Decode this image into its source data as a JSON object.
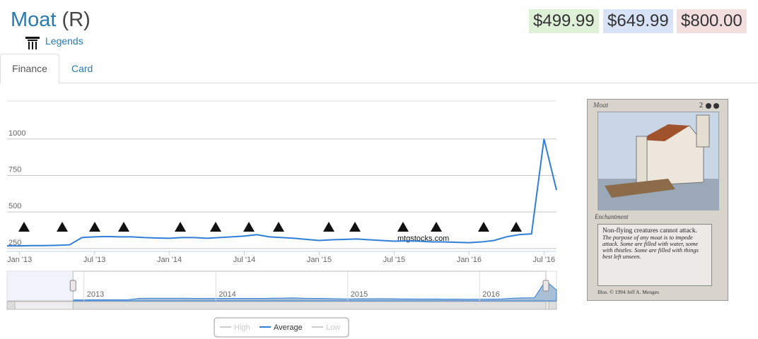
{
  "header": {
    "title": "Moat",
    "rarity": "(R)",
    "set": "Legends"
  },
  "prices": [
    "$499.99",
    "$649.99",
    "$800.00"
  ],
  "tabs": [
    "Finance",
    "Card"
  ],
  "watermark": "mtgstocks.com",
  "chart_data": {
    "type": "line",
    "x": [
      "2012-12",
      "2013-01",
      "2013-02",
      "2013-03",
      "2013-04",
      "2013-05",
      "2013-06",
      "2013-07",
      "2013-08",
      "2013-09",
      "2013-10",
      "2013-11",
      "2013-12",
      "2014-01",
      "2014-02",
      "2014-03",
      "2014-04",
      "2014-05",
      "2014-06",
      "2014-07",
      "2014-08",
      "2014-09",
      "2014-10",
      "2014-11",
      "2014-12",
      "2015-01",
      "2015-02",
      "2015-03",
      "2015-04",
      "2015-05",
      "2015-06",
      "2015-07",
      "2015-08",
      "2015-09",
      "2015-10",
      "2015-11",
      "2015-12",
      "2016-01",
      "2016-02",
      "2016-03",
      "2016-04",
      "2016-05",
      "2016-06",
      "2016-07",
      "2016-08"
    ],
    "series": [
      {
        "name": "High",
        "color": "#cccccc",
        "hidden": true
      },
      {
        "name": "Average",
        "color": "#2f7ed8",
        "values": [
          268,
          268,
          270,
          270,
          272,
          275,
          325,
          330,
          332,
          330,
          330,
          325,
          322,
          320,
          325,
          325,
          320,
          325,
          330,
          335,
          345,
          330,
          325,
          320,
          312,
          305,
          310,
          312,
          315,
          310,
          305,
          300,
          302,
          300,
          295,
          295,
          292,
          290,
          295,
          305,
          330,
          345,
          350,
          1000,
          650
        ]
      },
      {
        "name": "Low",
        "color": "#cccccc",
        "hidden": true
      }
    ],
    "xlim": [
      "2012-12",
      "2016-08"
    ],
    "xticks": [
      {
        "value": "2013-01",
        "label": "Jan '13"
      },
      {
        "value": "2013-07",
        "label": "Jul '13"
      },
      {
        "value": "2014-01",
        "label": "Jan '14"
      },
      {
        "value": "2014-07",
        "label": "Jul '14"
      },
      {
        "value": "2015-01",
        "label": "Jan '15"
      },
      {
        "value": "2015-07",
        "label": "Jul '15"
      },
      {
        "value": "2016-01",
        "label": "Jan '16"
      },
      {
        "value": "2016-07",
        "label": "Jul '16"
      }
    ],
    "ylim": [
      230,
      1260
    ],
    "yticks": [
      250,
      500,
      750,
      1000
    ],
    "grid": true,
    "navigator": {
      "xlim": [
        "2012-06",
        "2016-08"
      ],
      "xticks": [
        {
          "value": "2013-01",
          "label": "2013"
        },
        {
          "value": "2014-01",
          "label": "2014"
        },
        {
          "value": "2015-01",
          "label": "2015"
        },
        {
          "value": "2016-01",
          "label": "2016"
        }
      ]
    }
  },
  "card": {
    "name": "Moat",
    "cost": "2",
    "type_line": "Enchantment",
    "rules": "Non-flying creatures cannot attack.",
    "flavor": "The purpose of any moat is to impede attack. Some are filled with water, some with thistles. Some are filled with things best left unseen.",
    "credit": "Illus. © 1994 Jeff A. Menges"
  }
}
